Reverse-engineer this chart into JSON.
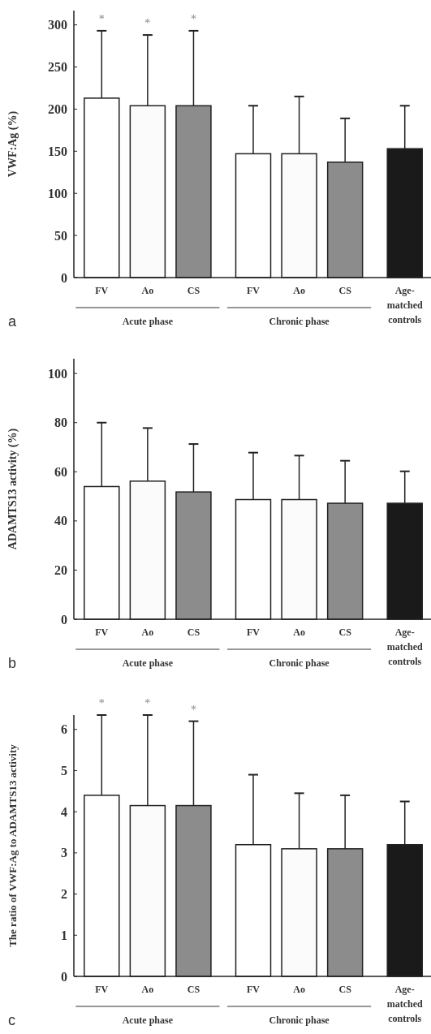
{
  "chart_data": [
    {
      "type": "bar",
      "categories": [
        "FV",
        "Ao",
        "CS",
        "FV",
        "Ao",
        "CS",
        "Age-matched controls"
      ],
      "ylabel": "VWF:Ag (%)",
      "ylim": [
        0,
        317
      ],
      "yticks": [
        0,
        50,
        100,
        150,
        200,
        250,
        300
      ],
      "values": [
        213,
        204,
        204,
        147,
        147,
        137,
        153
      ],
      "errors": [
        [
          213,
          293
        ],
        [
          204,
          288
        ],
        [
          204,
          293
        ],
        [
          147,
          204
        ],
        [
          147,
          215
        ],
        [
          137,
          189
        ],
        [
          153,
          204
        ]
      ],
      "colors": [
        "#ffffff",
        "#fbfbfb",
        "#8c8c8c",
        "#ffffff",
        "#fbfbfb",
        "#8c8c8c",
        "#1a1a1a"
      ],
      "annotations": [
        "a",
        "Acute phase",
        "Chronic phase",
        "*",
        "*",
        "*"
      ]
    },
    {
      "type": "bar",
      "categories": [
        "FV",
        "Ao",
        "CS",
        "FV",
        "Ao",
        "CS",
        "Age-matched controls"
      ],
      "ylabel": "ADAMTS13 activity (%)",
      "ylim": [
        0,
        106
      ],
      "yticks": [
        0,
        20,
        40,
        60,
        80,
        100
      ],
      "values": [
        54,
        56.2,
        51.8,
        48.7,
        48.7,
        47.2,
        47.2
      ],
      "errors": [
        [
          54,
          80
        ],
        [
          56.2,
          77.8
        ],
        [
          51.8,
          71.3
        ],
        [
          48.7,
          67.8
        ],
        [
          48.7,
          66.6
        ],
        [
          47.2,
          64.5
        ],
        [
          47.2,
          60.2
        ]
      ],
      "colors": [
        "#ffffff",
        "#fbfbfb",
        "#8c8c8c",
        "#ffffff",
        "#fbfbfb",
        "#8c8c8c",
        "#1a1a1a"
      ],
      "annotations": [
        "b",
        "Acute phase",
        "Chronic phase"
      ]
    },
    {
      "type": "bar",
      "categories": [
        "FV",
        "Ao",
        "CS",
        "FV",
        "Ao",
        "CS",
        "Age-matched controls"
      ],
      "ylabel": "The ratio of VWF:Ag to ADAMTS13 activity",
      "ylim": [
        0,
        6.35
      ],
      "yticks": [
        0,
        1,
        2,
        3,
        4,
        5,
        6
      ],
      "values": [
        4.4,
        4.15,
        4.15,
        3.2,
        3.1,
        3.1,
        3.2
      ],
      "errors": [
        [
          4.4,
          6.35
        ],
        [
          4.15,
          6.35
        ],
        [
          4.15,
          6.2
        ],
        [
          3.2,
          4.9
        ],
        [
          3.1,
          4.45
        ],
        [
          3.1,
          4.4
        ],
        [
          3.2,
          4.25
        ]
      ],
      "colors": [
        "#ffffff",
        "#fbfbfb",
        "#8c8c8c",
        "#ffffff",
        "#fbfbfb",
        "#8c8c8c",
        "#1a1a1a"
      ],
      "annotations": [
        "c",
        "Acute phase",
        "Chronic phase",
        "*",
        "*",
        "*"
      ]
    }
  ]
}
